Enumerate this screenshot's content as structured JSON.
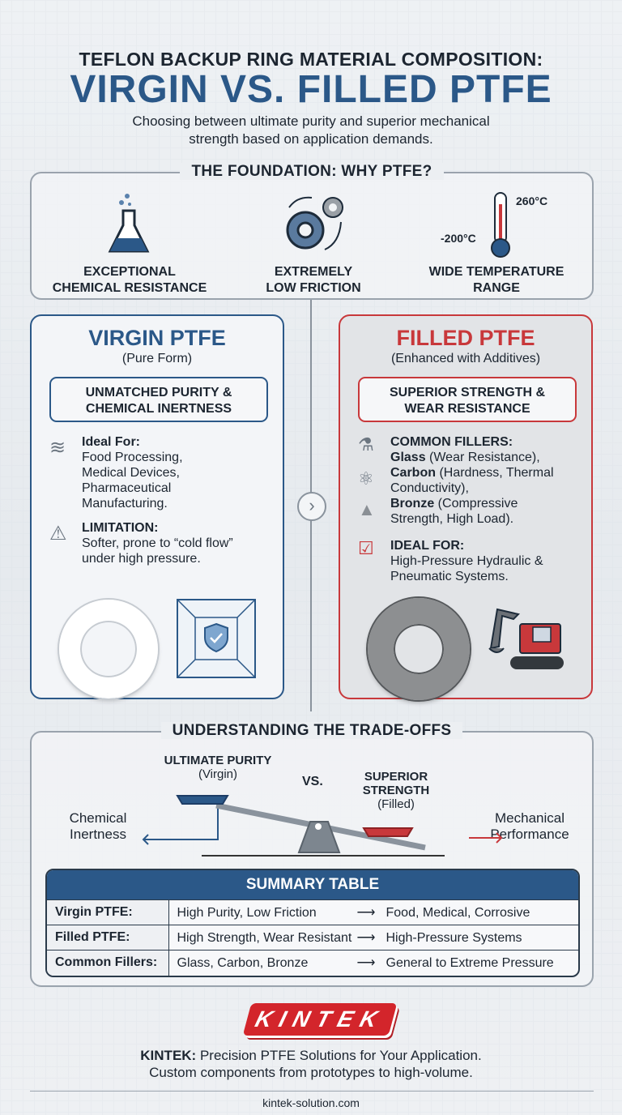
{
  "header": {
    "title_line1": "TEFLON BACKUP RING MATERIAL COMPOSITION:",
    "title_line2": "VIRGIN VS. FILLED PTFE",
    "subtitle_line1": "Choosing between ultimate purity and superior mechanical",
    "subtitle_line2": "strength based on application demands."
  },
  "foundation": {
    "title": "THE FOUNDATION: WHY PTFE?",
    "features": [
      {
        "icon": "flask-icon",
        "line1": "EXCEPTIONAL",
        "line2": "CHEMICAL RESISTANCE"
      },
      {
        "icon": "gears-icon",
        "line1": "EXTREMELY",
        "line2": "LOW FRICTION"
      },
      {
        "icon": "thermometer-icon",
        "line1": "WIDE TEMPERATURE",
        "line2": "RANGE",
        "high": "260°C",
        "low": "-200°C"
      }
    ]
  },
  "virgin": {
    "title": "VIRGIN PTFE",
    "subtitle": "(Pure Form)",
    "pill_line1": "UNMATCHED PURITY &",
    "pill_line2": "CHEMICAL INERTNESS",
    "ideal_label": "Ideal For:",
    "ideal_text": [
      "Food Processing,",
      "Medical Devices,",
      "Pharmaceutical",
      "Manufacturing."
    ],
    "limitation_label": "LIMITATION:",
    "limitation_text": [
      "Softer, prone to “cold flow”",
      "under high pressure."
    ],
    "color": "#2b5888"
  },
  "filled": {
    "title": "FILLED PTFE",
    "subtitle": "(Enhanced with Additives)",
    "pill_line1": "SUPERIOR STRENGTH &",
    "pill_line2": "WEAR RESISTANCE",
    "fillers_label": "COMMON FILLERS:",
    "fillers": [
      {
        "name": "Glass",
        "desc": " (Wear Resistance),"
      },
      {
        "name": "Carbon",
        "desc": " (Hardness, Thermal",
        "desc2": "Conductivity),"
      },
      {
        "name": "Bronze",
        "desc": " (Compressive",
        "desc2": "Strength, High Load)."
      }
    ],
    "ideal_label": "IDEAL FOR:",
    "ideal_text": [
      "High-Pressure Hydraulic &",
      "Pneumatic Systems."
    ],
    "color": "#c8383b"
  },
  "tradeoffs": {
    "title": "UNDERSTANDING THE TRADE-OFFS",
    "left_label": "ULTIMATE PURITY",
    "left_sub": "(Virgin)",
    "vs": "VS.",
    "right_label1": "SUPERIOR",
    "right_label2": "STRENGTH",
    "right_sub": "(Filled)",
    "left_axis1": "Chemical",
    "left_axis2": "Inertness",
    "right_axis1": "Mechanical",
    "right_axis2": "Performance"
  },
  "summary": {
    "title": "SUMMARY TABLE",
    "arrow": "⟶",
    "rows": [
      {
        "key": "Virgin PTFE:",
        "props": "High Purity, Low Friction",
        "uses": "Food, Medical, Corrosive"
      },
      {
        "key": "Filled PTFE:",
        "props": "High Strength, Wear Resistant",
        "uses": "High-Pressure Systems"
      },
      {
        "key": "Common Fillers:",
        "props": "Glass, Carbon, Bronze",
        "uses": "General to Extreme Pressure"
      }
    ]
  },
  "footer": {
    "logo": "KINTEK",
    "brand": "KINTEK:",
    "tagline": " Precision PTFE Solutions for Your Application.",
    "line2": "Custom components from prototypes to high-volume.",
    "url": "kintek-solution.com"
  }
}
